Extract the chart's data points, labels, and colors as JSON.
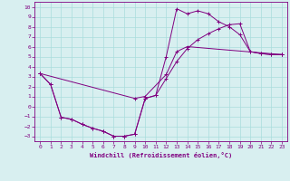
{
  "xlabel": "Windchill (Refroidissement éolien,°C)",
  "bg_color": "#d8eff0",
  "line_color": "#800080",
  "grid_color": "#aadddd",
  "xlim": [
    -0.5,
    23.5
  ],
  "ylim": [
    -3.5,
    10.5
  ],
  "xticks": [
    0,
    1,
    2,
    3,
    4,
    5,
    6,
    7,
    8,
    9,
    10,
    11,
    12,
    13,
    14,
    15,
    16,
    17,
    18,
    19,
    20,
    21,
    22,
    23
  ],
  "yticks": [
    -3,
    -2,
    -1,
    0,
    1,
    2,
    3,
    4,
    5,
    6,
    7,
    8,
    9,
    10
  ],
  "line1_x": [
    0,
    1,
    2,
    3,
    4,
    5,
    6,
    7,
    8,
    9,
    10,
    11,
    12,
    13,
    14,
    15,
    16,
    17,
    18,
    19,
    20,
    21,
    22,
    23
  ],
  "line1_y": [
    3.3,
    2.2,
    -1.1,
    -1.3,
    -1.8,
    -2.2,
    -2.5,
    -3.0,
    -3.0,
    -2.8,
    0.8,
    1.1,
    5.0,
    9.8,
    9.3,
    9.6,
    9.3,
    8.5,
    8.0,
    7.2,
    5.5,
    5.3,
    5.2,
    5.2
  ],
  "line2_x": [
    0,
    1,
    2,
    3,
    4,
    5,
    6,
    7,
    8,
    9,
    10,
    11,
    12,
    13,
    14,
    15,
    16,
    17,
    18,
    19,
    20,
    21,
    22,
    23
  ],
  "line2_y": [
    3.3,
    2.2,
    -1.1,
    -1.3,
    -1.8,
    -2.2,
    -2.5,
    -3.0,
    -3.0,
    -2.8,
    0.8,
    1.1,
    2.8,
    4.5,
    5.8,
    6.7,
    7.3,
    7.8,
    8.2,
    8.3,
    5.5,
    5.3,
    5.2,
    5.2
  ],
  "line3_x": [
    0,
    9,
    10,
    12,
    13,
    14,
    23
  ],
  "line3_y": [
    3.3,
    0.8,
    1.0,
    3.2,
    5.5,
    6.0,
    5.2
  ]
}
